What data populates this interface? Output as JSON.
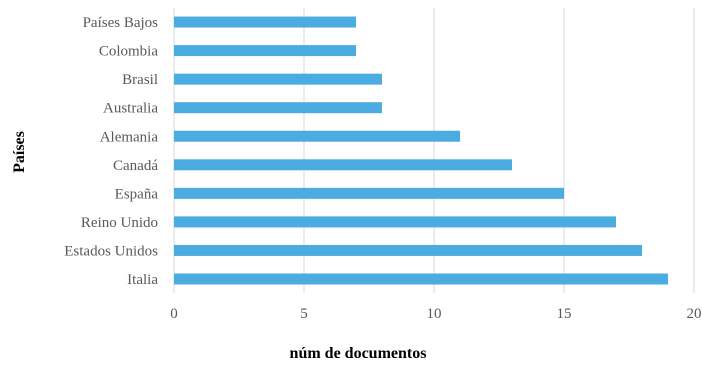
{
  "chart_data": {
    "type": "bar",
    "orientation": "horizontal",
    "categories": [
      "Italia",
      "Estados Unidos",
      "Reino Unido",
      "España",
      "Canadá",
      "Alemania",
      "Australia",
      "Brasil",
      "Colombia",
      "Países Bajos"
    ],
    "values": [
      19,
      18,
      17,
      15,
      13,
      11,
      8,
      8,
      7,
      7
    ],
    "xlabel": "núm de documentos",
    "ylabel": "Países",
    "xlim": [
      0,
      20
    ],
    "xticks": [
      0,
      5,
      10,
      15,
      20
    ],
    "grid": "vertical",
    "legend": "none",
    "bar_color": "#4aace0"
  }
}
